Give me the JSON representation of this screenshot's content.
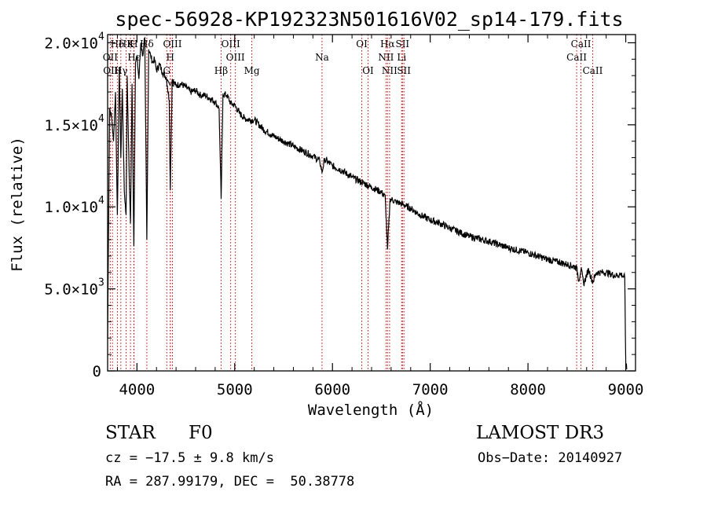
{
  "chart_data": {
    "type": "line",
    "title": "spec-56928-KP192323N501616V02_sp14-179.fits",
    "xlabel": "Wavelength (Å)",
    "ylabel": "Flux (relative)",
    "xlim": [
      3700,
      9100
    ],
    "ylim": [
      0,
      20500
    ],
    "x_ticks": [
      {
        "value": 4000,
        "label": "4000"
      },
      {
        "value": 5000,
        "label": "5000"
      },
      {
        "value": 6000,
        "label": "6000"
      },
      {
        "value": 7000,
        "label": "7000"
      },
      {
        "value": 8000,
        "label": "8000"
      },
      {
        "value": 9000,
        "label": "9000"
      }
    ],
    "y_ticks": [
      {
        "value": 0,
        "mantissa": "0",
        "exp": ""
      },
      {
        "value": 5000,
        "mantissa": "5.0×10",
        "exp": "3"
      },
      {
        "value": 10000,
        "mantissa": "1.0×10",
        "exp": "4"
      },
      {
        "value": 15000,
        "mantissa": "1.5×10",
        "exp": "4"
      },
      {
        "value": 20000,
        "mantissa": "2.0×10",
        "exp": "4"
      }
    ],
    "series": [
      {
        "name": "flux",
        "x": [
          3700,
          3720,
          3740,
          3760,
          3780,
          3800,
          3820,
          3835,
          3850,
          3870,
          3889,
          3900,
          3920,
          3934,
          3950,
          3968,
          3985,
          4000,
          4020,
          4040,
          4060,
          4080,
          4101,
          4120,
          4140,
          4160,
          4180,
          4200,
          4230,
          4260,
          4300,
          4330,
          4341,
          4360,
          4400,
          4450,
          4500,
          4550,
          4600,
          4650,
          4700,
          4750,
          4800,
          4840,
          4861,
          4880,
          4920,
          4960,
          5000,
          5050,
          5100,
          5150,
          5200,
          5300,
          5400,
          5500,
          5600,
          5700,
          5800,
          5870,
          5893,
          5920,
          6000,
          6100,
          6200,
          6300,
          6400,
          6500,
          6540,
          6563,
          6590,
          6650,
          6700,
          6800,
          6900,
          7000,
          7100,
          7200,
          7400,
          7600,
          7800,
          8000,
          8200,
          8400,
          8498,
          8520,
          8542,
          8570,
          8620,
          8662,
          8700,
          8800,
          8900,
          8950,
          8990,
          9000,
          9010
        ],
        "y": [
          2000,
          16000,
          15500,
          14000,
          17000,
          9500,
          18500,
          13000,
          17200,
          11000,
          9500,
          18000,
          12000,
          9000,
          17500,
          7600,
          18800,
          19200,
          17800,
          20000,
          19200,
          20300,
          8000,
          19600,
          19200,
          18800,
          19000,
          18300,
          18700,
          18200,
          17900,
          16500,
          11000,
          17700,
          17400,
          17500,
          17300,
          17000,
          17100,
          16800,
          16800,
          16600,
          16400,
          16000,
          10500,
          16900,
          16800,
          16300,
          16200,
          15700,
          15400,
          15300,
          15300,
          14700,
          14300,
          14000,
          13700,
          13400,
          13100,
          12800,
          12100,
          12900,
          12500,
          12200,
          11800,
          11500,
          11200,
          10900,
          10600,
          7400,
          10500,
          10300,
          10200,
          9900,
          9500,
          9200,
          9000,
          8700,
          8200,
          7900,
          7500,
          7200,
          6800,
          6500,
          6300,
          5500,
          6200,
          5300,
          6200,
          5400,
          6000,
          6000,
          5800,
          5900,
          5700,
          500,
          100
        ]
      }
    ],
    "spectral_lines": [
      {
        "label": "Hδ",
        "wavelength": 3800,
        "row": 0
      },
      {
        "label": "OII",
        "wavelength": 3727,
        "row": 1
      },
      {
        "label": "OIII",
        "wavelength": 3750,
        "row": 2
      },
      {
        "label": "Hγ",
        "wavelength": 3835,
        "row": 2
      },
      {
        "label": "HK",
        "wavelength": 3889,
        "row": 0
      },
      {
        "label": "K",
        "wavelength": 3934,
        "row": 0
      },
      {
        "label": "H",
        "wavelength": 3968,
        "row": 0
      },
      {
        "label": "Hε",
        "wavelength": 3970,
        "row": 1
      },
      {
        "label": "Hδ",
        "wavelength": 4101,
        "row": 0
      },
      {
        "label": "OIII",
        "wavelength": 4363,
        "row": 0
      },
      {
        "label": "H",
        "wavelength": 4341,
        "row": 1
      },
      {
        "label": "G",
        "wavelength": 4305,
        "row": 2
      },
      {
        "label": "M",
        "wavelength": 4340,
        "row": 3
      },
      {
        "label": "Hβ",
        "wavelength": 4861,
        "row": 2
      },
      {
        "label": "OIII",
        "wavelength": 4959,
        "row": 0
      },
      {
        "label": "OIII",
        "wavelength": 5007,
        "row": 1
      },
      {
        "label": "Mg",
        "wavelength": 5175,
        "row": 2
      },
      {
        "label": "Na",
        "wavelength": 5893,
        "row": 1
      },
      {
        "label": "OI",
        "wavelength": 6300,
        "row": 0
      },
      {
        "label": "OI",
        "wavelength": 6364,
        "row": 2
      },
      {
        "label": "Hα",
        "wavelength": 6563,
        "row": 0
      },
      {
        "label": "SII",
        "wavelength": 6716,
        "row": 0
      },
      {
        "label": "NII",
        "wavelength": 6548,
        "row": 1
      },
      {
        "label": "Li",
        "wavelength": 6708,
        "row": 1
      },
      {
        "label": "NII",
        "wavelength": 6584,
        "row": 2
      },
      {
        "label": "SII",
        "wavelength": 6731,
        "row": 2
      },
      {
        "label": "CaII",
        "wavelength": 8498,
        "row": 1
      },
      {
        "label": "CaII",
        "wavelength": 8542,
        "row": 0
      },
      {
        "label": "CaII",
        "wavelength": 8662,
        "row": 2
      }
    ],
    "colors": {
      "flux": "#000000",
      "lines": "#cc0000"
    }
  },
  "info": {
    "object_class": "STAR",
    "subclass": "F0",
    "survey": "LAMOST DR3",
    "redshift": "cz = −17.5 ± 9.8 km/s",
    "obs_date": "Obs−Date: 20140927",
    "coords": "RA = 287.99179, DEC =  50.38778"
  }
}
